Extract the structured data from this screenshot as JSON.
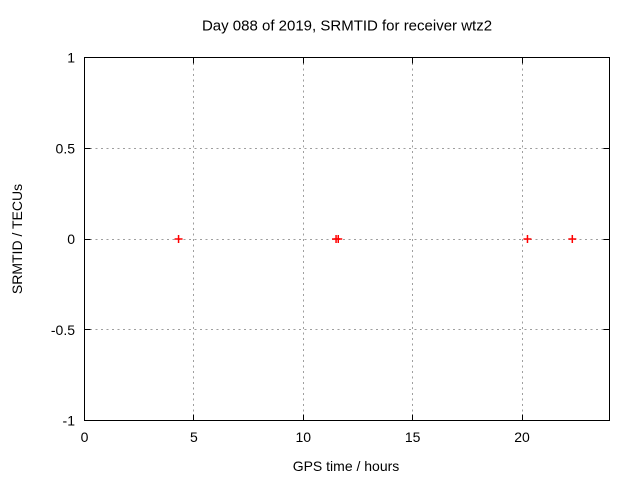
{
  "chart_data": {
    "type": "scatter",
    "title": "Day 088 of 2019, SRMTID for receiver wtz2",
    "xlabel": "GPS time / hours",
    "ylabel": "SRMTID / TECUs",
    "xlim": [
      0,
      24
    ],
    "ylim": [
      -1,
      1
    ],
    "xticks": [
      0,
      5,
      10,
      15,
      20
    ],
    "xtick_labels": [
      "0",
      "5",
      "10",
      "15",
      "20"
    ],
    "yticks": [
      -1,
      -0.5,
      0,
      0.5,
      1
    ],
    "ytick_labels": [
      "-1",
      "-0.5",
      "0",
      "0.5",
      "1"
    ],
    "grid": true,
    "legend": "none",
    "marker": {
      "shape": "plus",
      "color": "#ff0000",
      "size": 8
    },
    "points": [
      [
        4.3,
        0
      ],
      [
        11.5,
        0
      ],
      [
        11.6,
        0
      ],
      [
        20.25,
        0
      ],
      [
        22.3,
        0
      ]
    ],
    "colors": {
      "border": "#000000",
      "grid": "#9e9e9e",
      "background": "#ffffff"
    }
  }
}
